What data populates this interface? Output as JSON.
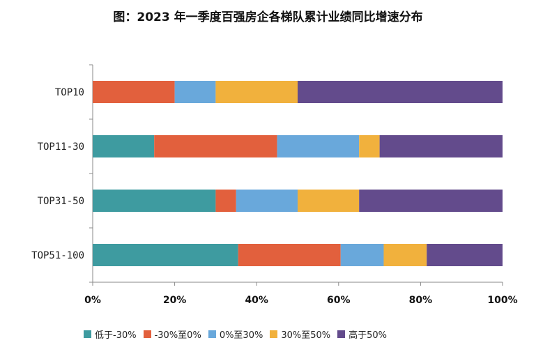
{
  "chart_data": {
    "type": "bar",
    "orientation": "horizontal",
    "stacked": true,
    "title": "图：2023 年一季度百强房企各梯队累计业绩同比增速分布",
    "categories": [
      "TOP10",
      "TOP11-30",
      "TOP31-50",
      "TOP51-100"
    ],
    "series": [
      {
        "name": "低于-30%",
        "color": "#3E9BA0",
        "values": [
          0,
          15,
          30,
          35.5
        ]
      },
      {
        "name": "-30%至0%",
        "color": "#E2603D",
        "values": [
          20,
          30,
          5,
          25
        ]
      },
      {
        "name": "0%至30%",
        "color": "#69A8DB",
        "values": [
          10,
          20,
          15,
          10.5
        ]
      },
      {
        "name": "30%至50%",
        "color": "#F1B13D",
        "values": [
          20,
          5,
          15,
          10.5
        ]
      },
      {
        "name": "高于50%",
        "color": "#634B8C",
        "values": [
          50,
          30,
          35,
          18.5
        ]
      }
    ],
    "xticks": [
      "0%",
      "20%",
      "40%",
      "60%",
      "80%",
      "100%"
    ],
    "xlim": [
      0,
      100
    ],
    "grid": false,
    "legend_position": "bottom"
  }
}
